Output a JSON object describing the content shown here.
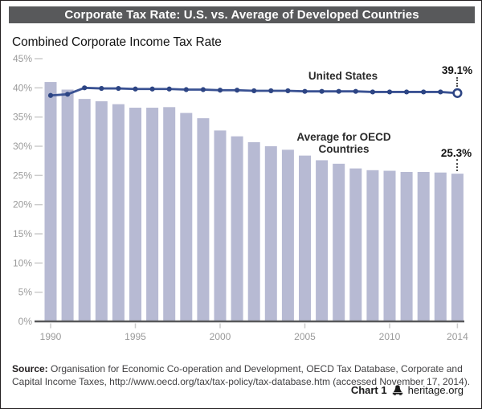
{
  "header": {
    "title": "Corporate Tax Rate: U.S. vs. Average of Developed Countries"
  },
  "subtitle": "Combined Corporate Income Tax Rate",
  "chart_data": {
    "type": "bar",
    "subtype": "bar + line combo",
    "x": [
      1990,
      1991,
      1992,
      1993,
      1994,
      1995,
      1996,
      1997,
      1998,
      1999,
      2000,
      2001,
      2002,
      2003,
      2004,
      2005,
      2006,
      2007,
      2008,
      2009,
      2010,
      2011,
      2012,
      2013,
      2014
    ],
    "x_tick_years": [
      1990,
      1995,
      2000,
      2005,
      2010,
      2014
    ],
    "y_ticks": [
      0,
      5,
      10,
      15,
      20,
      25,
      30,
      35,
      40,
      45
    ],
    "ylim": [
      0,
      45
    ],
    "grid": "off (short tick marks only)",
    "legend_position": "inline annotations",
    "title": "Corporate Tax Rate: U.S. vs. Average of Developed Countries",
    "ylabel": "Combined Corporate Income Tax Rate",
    "series": [
      {
        "name": "United States",
        "type": "line",
        "values": [
          38.7,
          38.9,
          40.0,
          39.9,
          39.9,
          39.8,
          39.8,
          39.8,
          39.7,
          39.7,
          39.6,
          39.6,
          39.5,
          39.5,
          39.5,
          39.4,
          39.4,
          39.4,
          39.4,
          39.3,
          39.3,
          39.3,
          39.3,
          39.3,
          39.1
        ]
      },
      {
        "name": "Average for OECD Countries",
        "type": "bar",
        "values": [
          41.0,
          39.7,
          38.1,
          37.7,
          37.2,
          36.6,
          36.6,
          36.7,
          35.7,
          34.8,
          32.7,
          31.7,
          30.7,
          30.0,
          29.4,
          28.4,
          27.6,
          27.0,
          26.2,
          25.9,
          25.8,
          25.6,
          25.6,
          25.5,
          25.3
        ]
      }
    ],
    "annotations": {
      "us_label": "United States",
      "oecd_label": "Average for OECD\nCountries",
      "us_end_value": "39.1%",
      "oecd_end_value": "25.3%"
    },
    "colors": {
      "bar": "#b7bad3",
      "line": "#3a5293",
      "dot": "#2d4584",
      "axis": "#58595b",
      "tick": "#cccccc",
      "tick_label": "#9a9a9a",
      "titlebar_bg": "#58595b"
    }
  },
  "source": {
    "label": "Source:",
    "text": " Organisation for Economic Co-operation and Development, OECD Tax Database, Corporate and Capital Income Taxes, http://www.oecd.org/tax/tax-policy/tax-database.htm (accessed November 17, 2014)."
  },
  "footer": {
    "chart_number": "Chart 1",
    "site": "heritage.org",
    "icon": "liberty-bell-icon"
  }
}
